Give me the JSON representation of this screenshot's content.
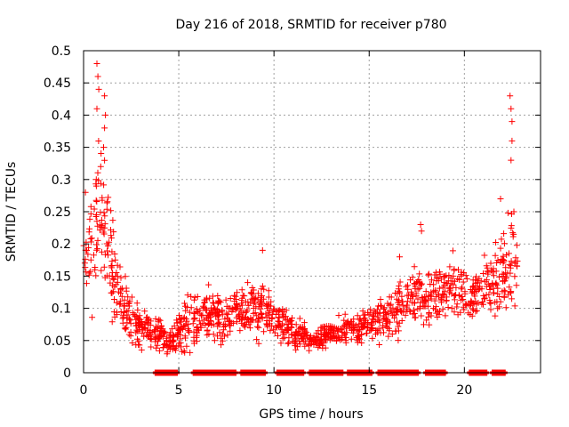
{
  "chart_data": {
    "type": "scatter",
    "title": "Day 216 of 2018, SRMTID for receiver p780",
    "xlabel": "GPS time / hours",
    "ylabel": "SRMTID / TECUs",
    "xlim": [
      0,
      24
    ],
    "ylim": [
      0,
      0.5
    ],
    "x_ticks": [
      0,
      5,
      10,
      15,
      20
    ],
    "x_tick_labels": [
      "0",
      "5",
      "10",
      "15",
      "20"
    ],
    "y_ticks": [
      0,
      0.05,
      0.1,
      0.15,
      0.2,
      0.25,
      0.3,
      0.35,
      0.4,
      0.45,
      0.5
    ],
    "y_tick_labels": [
      "0",
      "0.05",
      "0.1",
      "0.15",
      "0.2",
      "0.25",
      "0.3",
      "0.35",
      "0.4",
      "0.45",
      "0.5"
    ],
    "grid": true,
    "marker": "plus",
    "color": "#ff0000",
    "series": [
      {
        "name": "SRMTID",
        "envelope": {
          "x": [
            0.0,
            0.3,
            0.7,
            1.0,
            1.3,
            1.6,
            2.0,
            2.4,
            2.8,
            3.2,
            3.6,
            4.0,
            4.5,
            5.0,
            5.5,
            6.0,
            6.5,
            7.0,
            7.5,
            8.0,
            8.5,
            9.0,
            9.5,
            10.0,
            10.5,
            11.0,
            11.5,
            12.0,
            12.5,
            13.0,
            13.5,
            14.0,
            14.5,
            15.0,
            15.5,
            16.0,
            16.5,
            17.0,
            17.5,
            18.0,
            18.5,
            19.0,
            19.5,
            20.0,
            20.5,
            21.0,
            21.5,
            22.0,
            22.5,
            22.8
          ],
          "y_mid": [
            0.18,
            0.19,
            0.24,
            0.25,
            0.2,
            0.15,
            0.12,
            0.09,
            0.075,
            0.07,
            0.065,
            0.055,
            0.05,
            0.065,
            0.08,
            0.085,
            0.085,
            0.085,
            0.085,
            0.09,
            0.095,
            0.1,
            0.1,
            0.09,
            0.075,
            0.065,
            0.055,
            0.05,
            0.055,
            0.06,
            0.065,
            0.07,
            0.07,
            0.075,
            0.08,
            0.09,
            0.1,
            0.115,
            0.12,
            0.12,
            0.12,
            0.125,
            0.13,
            0.125,
            0.12,
            0.125,
            0.14,
            0.15,
            0.17,
            0.18
          ],
          "y_spread": [
            0.06,
            0.07,
            0.11,
            0.1,
            0.08,
            0.06,
            0.04,
            0.035,
            0.03,
            0.025,
            0.025,
            0.02,
            0.02,
            0.03,
            0.035,
            0.035,
            0.035,
            0.035,
            0.035,
            0.035,
            0.035,
            0.04,
            0.04,
            0.03,
            0.025,
            0.02,
            0.02,
            0.015,
            0.015,
            0.015,
            0.02,
            0.02,
            0.02,
            0.02,
            0.025,
            0.03,
            0.035,
            0.04,
            0.04,
            0.04,
            0.04,
            0.04,
            0.04,
            0.035,
            0.035,
            0.04,
            0.05,
            0.06,
            0.09,
            0.08
          ]
        },
        "spikes": [
          {
            "x": 0.7,
            "y": 0.48
          },
          {
            "x": 0.75,
            "y": 0.46
          },
          {
            "x": 0.8,
            "y": 0.44
          },
          {
            "x": 0.7,
            "y": 0.41
          },
          {
            "x": 1.1,
            "y": 0.43
          },
          {
            "x": 1.15,
            "y": 0.4
          },
          {
            "x": 1.1,
            "y": 0.38
          },
          {
            "x": 1.05,
            "y": 0.35
          },
          {
            "x": 0.9,
            "y": 0.32
          },
          {
            "x": 0.1,
            "y": 0.28
          },
          {
            "x": 9.4,
            "y": 0.19
          },
          {
            "x": 16.6,
            "y": 0.18
          },
          {
            "x": 17.7,
            "y": 0.23
          },
          {
            "x": 17.75,
            "y": 0.22
          },
          {
            "x": 22.4,
            "y": 0.43
          },
          {
            "x": 22.45,
            "y": 0.41
          },
          {
            "x": 22.5,
            "y": 0.39
          },
          {
            "x": 22.5,
            "y": 0.36
          },
          {
            "x": 22.45,
            "y": 0.33
          },
          {
            "x": 21.9,
            "y": 0.27
          },
          {
            "x": 22.6,
            "y": 0.25
          }
        ],
        "zero_runs": [
          [
            3.8,
            4.9
          ],
          [
            5.8,
            8.0
          ],
          [
            8.3,
            9.5
          ],
          [
            10.2,
            11.6
          ],
          [
            11.9,
            13.6
          ],
          [
            13.9,
            15.1
          ],
          [
            15.5,
            17.6
          ],
          [
            18.0,
            19.0
          ],
          [
            20.3,
            21.2
          ],
          [
            21.5,
            22.2
          ]
        ]
      }
    ]
  }
}
